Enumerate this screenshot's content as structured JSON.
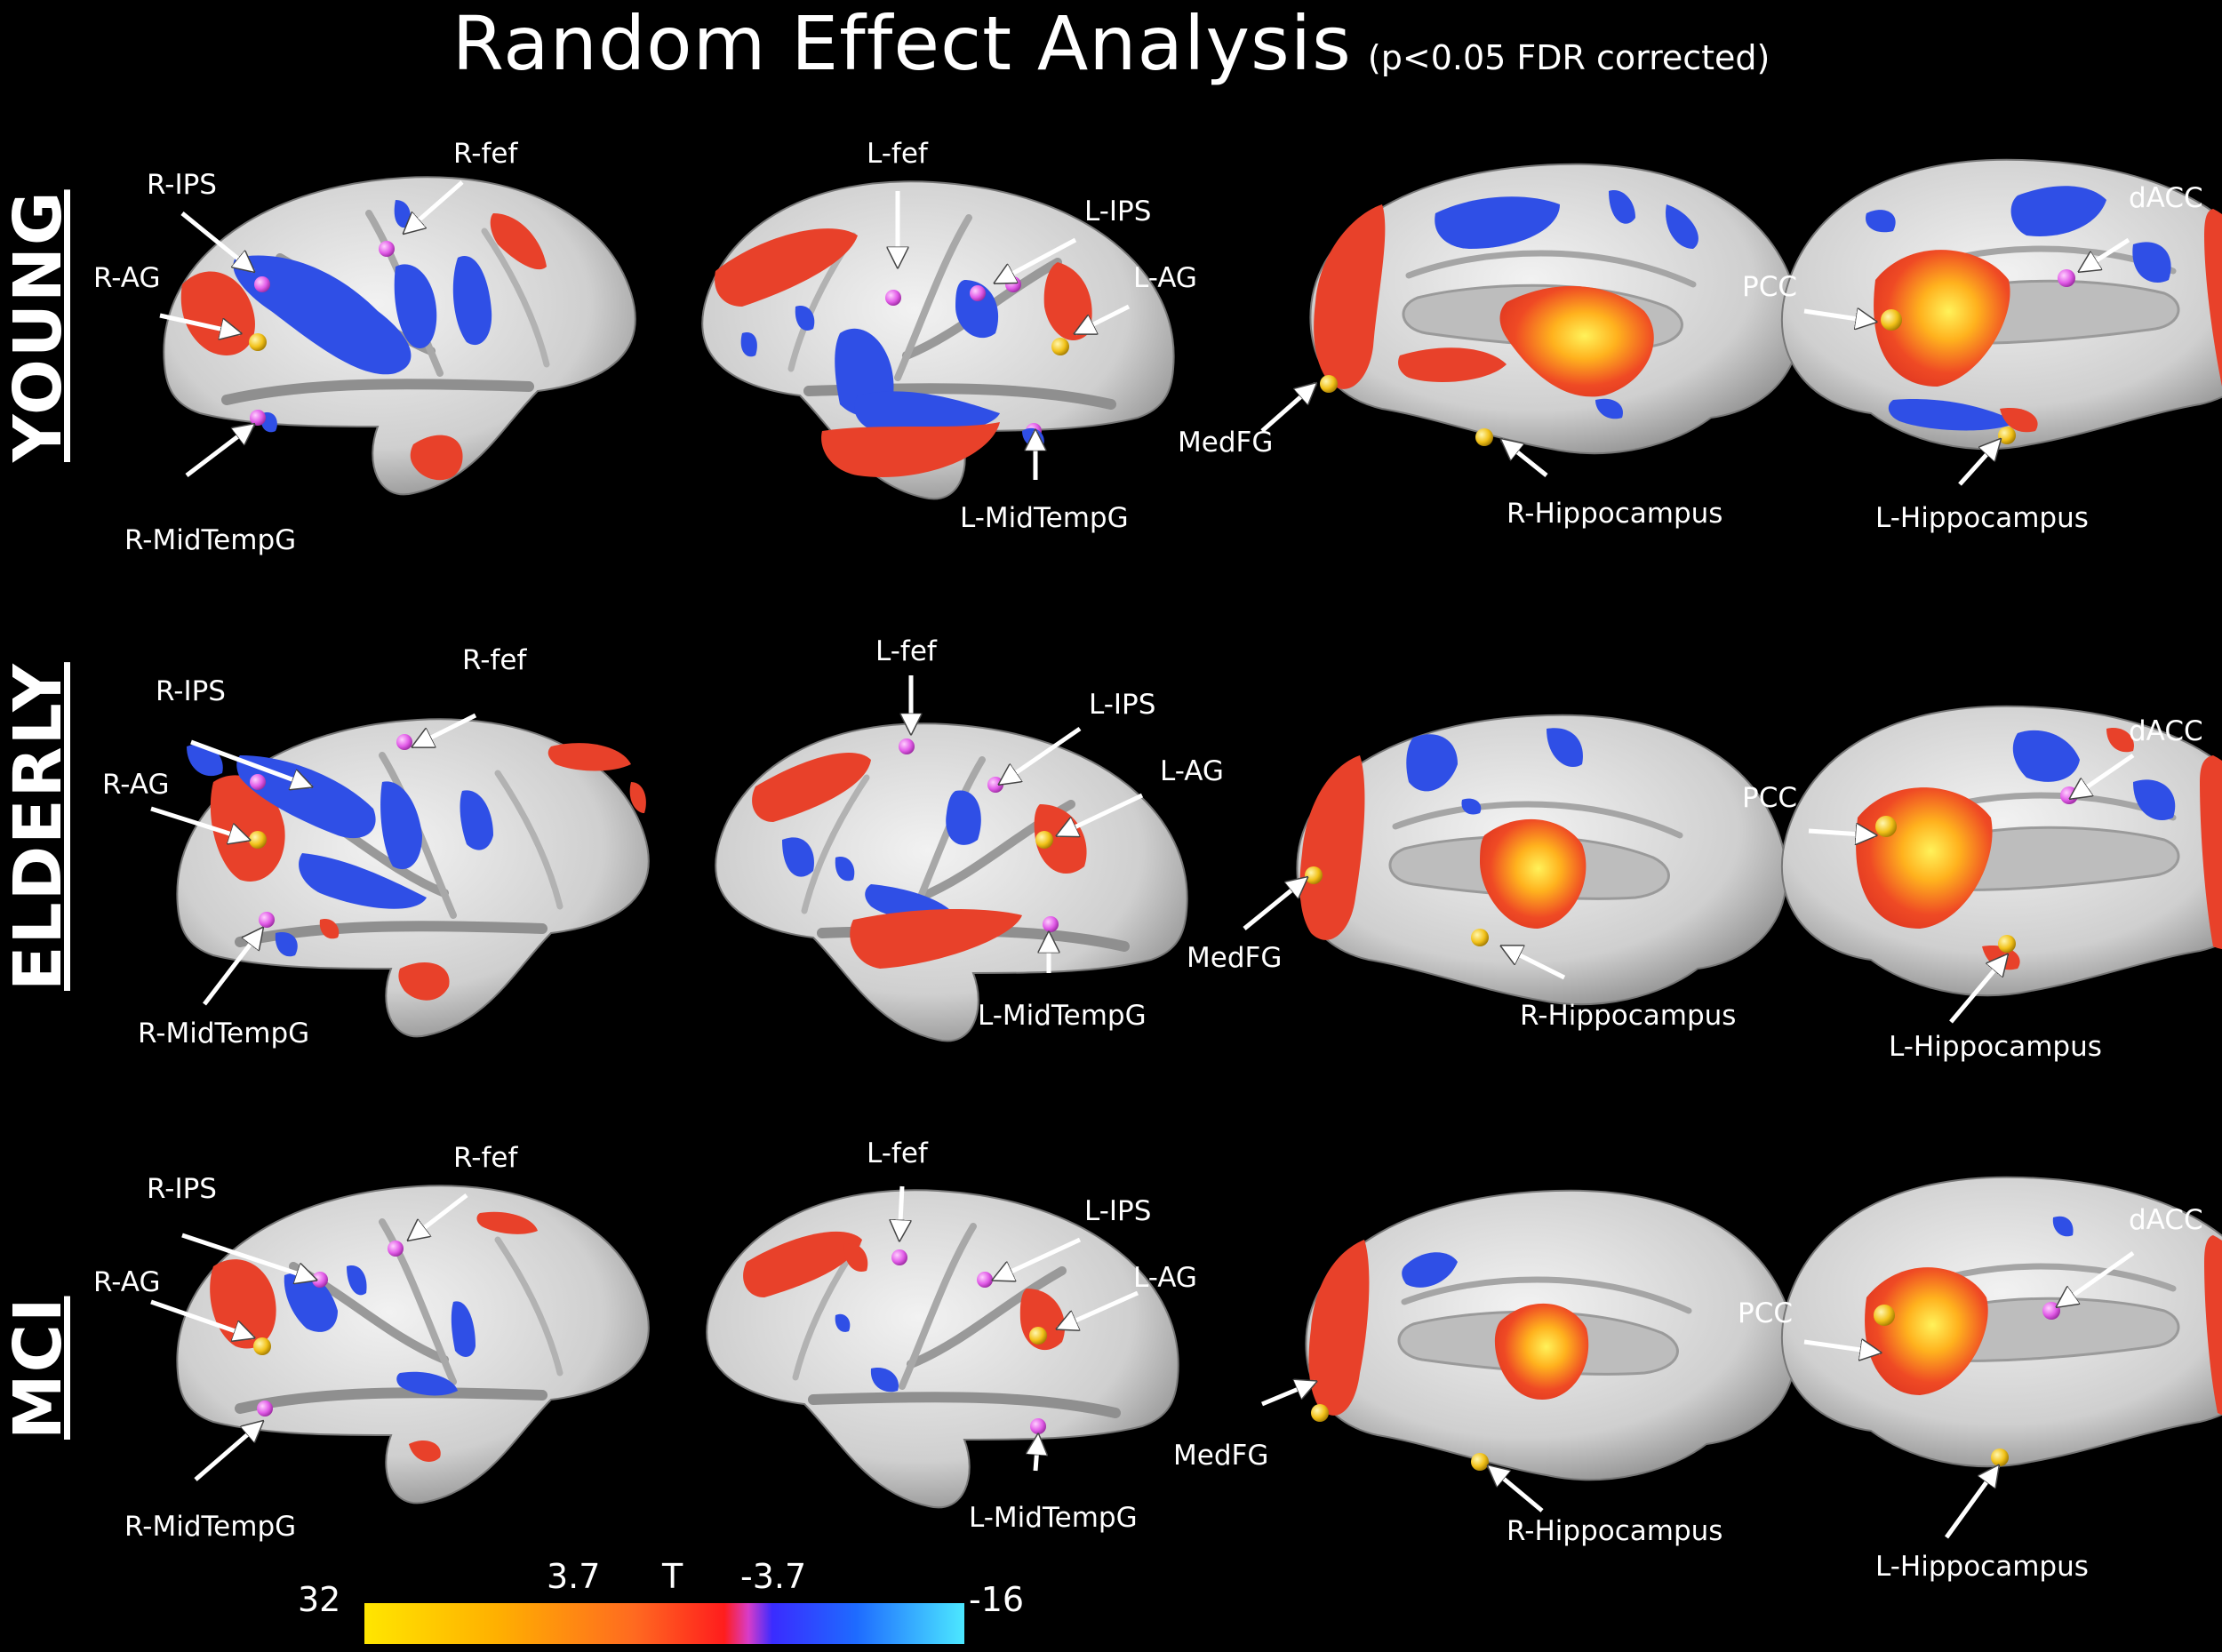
{
  "title": {
    "main": "Random Effect Analysis",
    "sub": "(p<0.05 FDR corrected)"
  },
  "rows": [
    {
      "label": "YOUNG"
    },
    {
      "label": "ELDERLY"
    },
    {
      "label": "MCI"
    }
  ],
  "region_labels": {
    "lateral_right": [
      "R-IPS",
      "R-fef",
      "R-AG",
      "R-MidTempG"
    ],
    "lateral_left": [
      "L-fef",
      "L-IPS",
      "L-AG",
      "L-MidTempG"
    ],
    "medial_right": [
      "MedFG",
      "R-Hippocampus"
    ],
    "medial_left": [
      "dACC",
      "PCC",
      "L-Hippocampus"
    ]
  },
  "colorbar": {
    "max": "32",
    "pos_threshold": "3.7",
    "stat": "T",
    "neg_threshold": "-3.7",
    "min": "-16"
  },
  "colors": {
    "background": "#000000",
    "cortex": "#d9d9d9",
    "positive": "#e8412a",
    "peak": "#ffe14a",
    "negative": "#2f4fe6",
    "marker_lateral": "#e25ce8",
    "marker_medial": "#f2c21a"
  }
}
